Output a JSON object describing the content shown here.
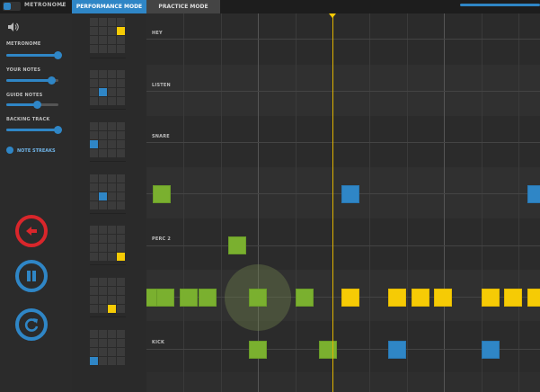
{
  "topbar": {
    "metronome_label": "METRONOME",
    "tabs": [
      {
        "label": "PERFORMANCE MODE",
        "active": true
      },
      {
        "label": "PRACTICE MODE",
        "active": false
      }
    ]
  },
  "sidebar": {
    "sliders": [
      {
        "label": "METRONOME",
        "level": 0.97
      },
      {
        "label": "YOUR NOTES",
        "level": 0.87
      },
      {
        "label": "GUIDE NOTES",
        "level": 0.59
      },
      {
        "label": "BACKING TRACK",
        "level": 0.97
      }
    ],
    "note_streaks_label": "NOTE STREAKS",
    "controls": [
      {
        "name": "back",
        "icon": "arrow-left-icon",
        "color": "#d9262b"
      },
      {
        "name": "pause",
        "icon": "pause-icon",
        "color": "#2f86c6"
      },
      {
        "name": "restart",
        "icon": "restart-icon",
        "color": "#2f86c6"
      }
    ]
  },
  "lanes": [
    {
      "label": "HEY"
    },
    {
      "label": "LISTEN"
    },
    {
      "label": "SNARE"
    },
    {
      "label": ""
    },
    {
      "label": "PERC 2"
    },
    {
      "label": ""
    },
    {
      "label": "KICK"
    }
  ],
  "colors": {
    "accent_blue": "#2f86c6",
    "note_green": "#7ab02f",
    "note_yellow": "#f6cb05",
    "back_red": "#d9262b",
    "playhead": "#e0b400"
  }
}
